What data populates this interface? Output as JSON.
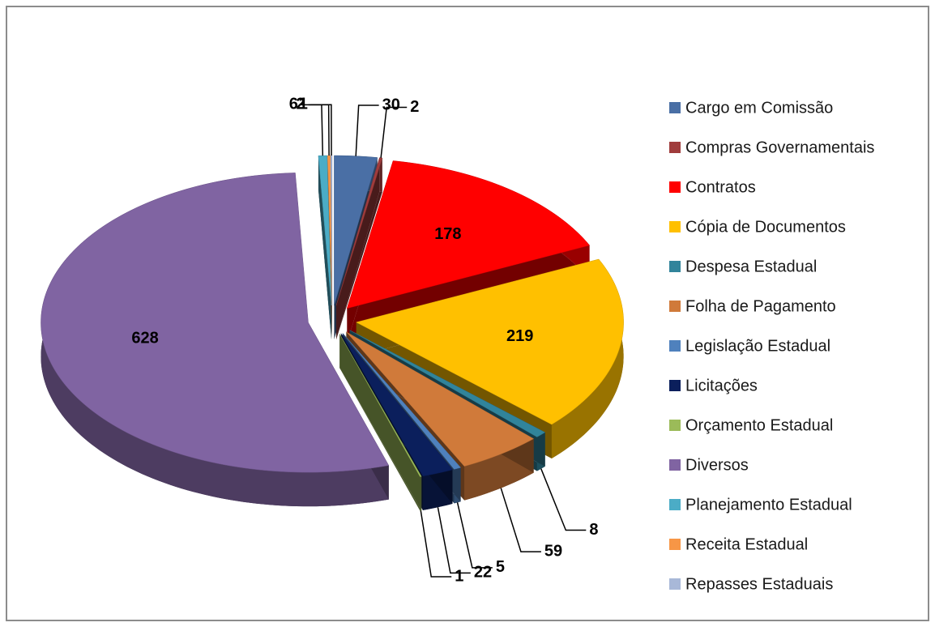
{
  "chart_data": {
    "type": "pie",
    "categories": [
      "Cargo em Comissão",
      "Compras Governamentais",
      "Contratos",
      "Cópia de Documentos",
      "Despesa Estadual",
      "Folha de Pagamento",
      "Legislação Estadual",
      "Licitações",
      "Orçamento Estadual",
      "Diversos",
      "Planejamento Estadual",
      "Receita Estadual",
      "Repasses Estaduais"
    ],
    "values": [
      30,
      2,
      178,
      219,
      8,
      59,
      5,
      22,
      1,
      628,
      6,
      2,
      1
    ],
    "colors": [
      "#4a6fa5",
      "#a03c3c",
      "#ff0000",
      "#ffc000",
      "#31849b",
      "#d07a3a",
      "#4f81bd",
      "#0b1f5c",
      "#9bbb59",
      "#8064a2",
      "#4bacc6",
      "#f79646",
      "#a8b8d8"
    ],
    "legend": "right"
  }
}
